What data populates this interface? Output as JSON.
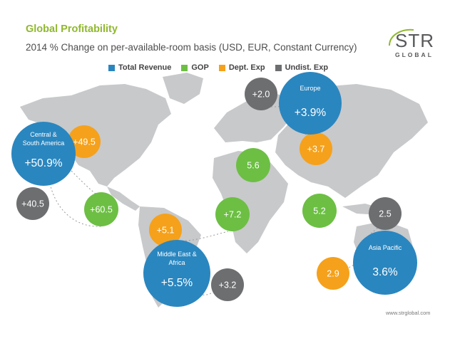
{
  "header": {
    "title": "Global Profitability",
    "subtitle": "2014 % Change on per-available-room basis (USD, EUR, Constant Currency)"
  },
  "logo": {
    "line1": "STR",
    "line2": "GLOBAL"
  },
  "legend": [
    {
      "label": "Total Revenue",
      "color": "#2a86bf"
    },
    {
      "label": "GOP",
      "color": "#6cbf43"
    },
    {
      "label": "Dept. Exp",
      "color": "#f5a11b"
    },
    {
      "label": "Undist. Exp",
      "color": "#6d6e70"
    }
  ],
  "source": "www.strglobal.com",
  "chart_data": {
    "type": "bubble-map",
    "title": "Global Profitability",
    "subtitle": "2014 % Change on per-available-room basis (USD, EUR, Constant Currency)",
    "regions": [
      {
        "name": "Central & South America",
        "name_lines": [
          "Central &",
          "South America"
        ],
        "total_revenue": "+50.9%",
        "gop": "+60.5",
        "dept_exp": "+49.5",
        "undist_exp": "+40.5"
      },
      {
        "name": "Europe",
        "name_lines": [
          "Europe"
        ],
        "total_revenue": "+3.9%",
        "gop": "5.6",
        "dept_exp": "+3.7",
        "undist_exp": "+2.0"
      },
      {
        "name": "Middle East & Africa",
        "name_lines": [
          "Middle East &",
          "Africa"
        ],
        "total_revenue": "+5.5%",
        "gop": "+7.2",
        "dept_exp": "+5.1",
        "undist_exp": "+3.2"
      },
      {
        "name": "Asia Pacific",
        "name_lines": [
          "Asia Pacific"
        ],
        "total_revenue": "3.6%",
        "gop": "5.2",
        "dept_exp": "2.9",
        "undist_exp": "2.5"
      }
    ]
  }
}
